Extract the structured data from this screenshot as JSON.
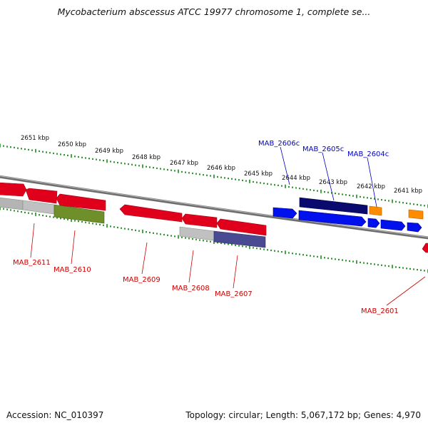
{
  "header": {
    "title": "Mycobacterium abscessus ATCC 19977 chromosome 1, complete se..."
  },
  "footer": {
    "accession": "Accession: NC_010397",
    "summary": "Topology: circular; Length: 5,067,172 bp; Genes: 4,970"
  },
  "colors": {
    "reverse_gene": "#e0001b",
    "forward_gene": "#0011ee",
    "forward_gene_dark": "#0a0a6e",
    "orange_gene": "#ff8c00",
    "olive_gene": "#6e8f2a",
    "grey_gene": "#b4b4b4",
    "purple_gene": "#4a4a92",
    "tick": "#1a8a1a",
    "backbone": "#888888",
    "label_red": "#cc0000",
    "label_blue": "#0000cc"
  },
  "scale_labels": [
    "2651 kbp",
    "2650 kbp",
    "2649 kbp",
    "2648 kbp",
    "2647 kbp",
    "2646 kbp",
    "2645 kbp",
    "2644 kbp",
    "2643 kbp",
    "2642 kbp",
    "2641 kbp"
  ],
  "gene_labels": [
    {
      "text": "MAB_2606c",
      "strand": "forward"
    },
    {
      "text": "MAB_2605c",
      "strand": "forward"
    },
    {
      "text": "MAB_2604c",
      "strand": "forward"
    },
    {
      "text": "MAB_2611",
      "strand": "reverse"
    },
    {
      "text": "MAB_2610",
      "strand": "reverse"
    },
    {
      "text": "MAB_2609",
      "strand": "reverse"
    },
    {
      "text": "MAB_2608",
      "strand": "reverse"
    },
    {
      "text": "MAB_2607",
      "strand": "reverse"
    },
    {
      "text": "MAB_2601",
      "strand": "reverse"
    }
  ]
}
